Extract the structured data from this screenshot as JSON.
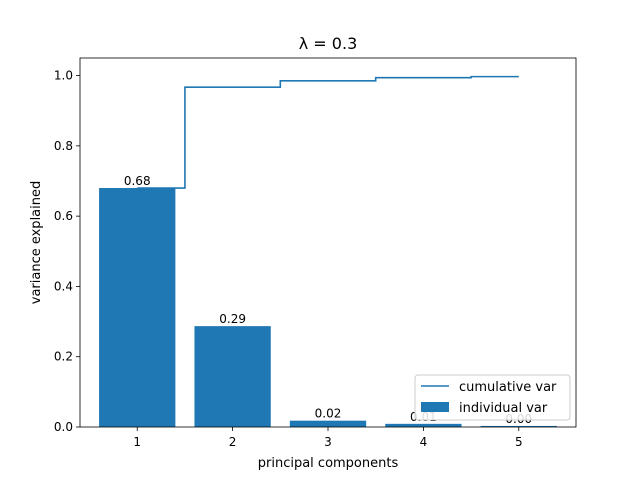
{
  "chart_data": {
    "type": "bar",
    "title": "λ = 0.3",
    "xlabel": "principal components",
    "ylabel": "variance explained",
    "categories": [
      "1",
      "2",
      "3",
      "4",
      "5"
    ],
    "x": [
      1,
      2,
      3,
      4,
      5
    ],
    "xlim": [
      0.4,
      5.6
    ],
    "ylim": [
      0,
      1.05
    ],
    "yticks": [
      "0.0",
      "0.2",
      "0.4",
      "0.6",
      "0.8",
      "1.0"
    ],
    "ytick_values": [
      0,
      0.2,
      0.4,
      0.6,
      0.8,
      1.0
    ],
    "grid": false,
    "legend_position": "lower-right",
    "series": [
      {
        "name": "individual var",
        "kind": "bar",
        "color": "#1f77b4",
        "values": [
          0.68,
          0.287,
          0.018,
          0.009,
          0.003
        ],
        "labels": [
          "0.68",
          "0.29",
          "0.02",
          "0.01",
          "0.00"
        ]
      },
      {
        "name": "cumulative var",
        "kind": "step",
        "color": "#1f77b4",
        "values": [
          0.68,
          0.967,
          0.985,
          0.994,
          0.997
        ]
      }
    ]
  }
}
